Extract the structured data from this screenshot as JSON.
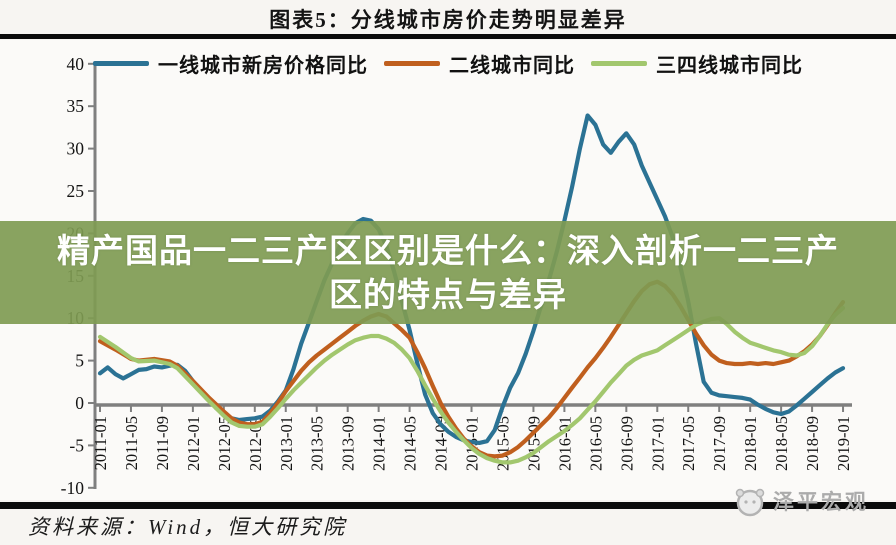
{
  "header": {
    "title": "图表5：分线城市房价走势明显差异"
  },
  "legend": {
    "items": [
      {
        "label": "一线城市新房价格同比",
        "color": "#2b7294"
      },
      {
        "label": "二线城市同比",
        "color": "#c05f1e"
      },
      {
        "label": "三四线城市同比",
        "color": "#a2c76e"
      }
    ]
  },
  "overlay": {
    "line1": "精产国品一二三产区区别是什么：深入剖析一二三产",
    "line2": "区的特点与差异",
    "background": "#7f9b52"
  },
  "watermark": {
    "text": "泽平宏观"
  },
  "footer": {
    "source": "资料来源：Wind，恒大研究院"
  },
  "chart_data": {
    "type": "line",
    "title": "图表5：分线城市房价走势明显差异",
    "xlabel": "",
    "ylabel": "",
    "ylim": [
      -10,
      40
    ],
    "y_ticks": [
      40,
      35,
      30,
      25,
      20,
      15,
      10,
      5,
      0,
      -5,
      -10
    ],
    "grid": false,
    "legend_position": "top",
    "x_start": "2011-01",
    "months_per_tick": 4,
    "x_tick_labels": [
      "2011-01",
      "2011-05",
      "2011-09",
      "2012-01",
      "2012-05",
      "2012-09",
      "2013-01",
      "2013-05",
      "2013-09",
      "2014-01",
      "2014-05",
      "2014-09",
      "2015-01",
      "2015-05",
      "2015-09",
      "2016-01",
      "2016-05",
      "2016-09",
      "2017-01",
      "2017-05",
      "2017-09",
      "2018-01",
      "2018-05",
      "2018-09",
      "2019-01"
    ],
    "series": [
      {
        "name": "一线城市新房价格同比",
        "color": "#2b7294",
        "points": [
          [
            0,
            3.5
          ],
          [
            1,
            4.2
          ],
          [
            2,
            3.4
          ],
          [
            3,
            2.9
          ],
          [
            4,
            3.4
          ],
          [
            5,
            3.9
          ],
          [
            6,
            4.0
          ],
          [
            7,
            4.3
          ],
          [
            8,
            4.2
          ],
          [
            9,
            4.4
          ],
          [
            10,
            4.5
          ],
          [
            11,
            3.8
          ],
          [
            12,
            2.6
          ],
          [
            13,
            1.6
          ],
          [
            14,
            0.6
          ],
          [
            15,
            -0.6
          ],
          [
            16,
            -1.4
          ],
          [
            17,
            -1.8
          ],
          [
            18,
            -2.0
          ],
          [
            19,
            -1.9
          ],
          [
            20,
            -1.8
          ],
          [
            21,
            -1.6
          ],
          [
            22,
            -0.9
          ],
          [
            23,
            0.2
          ],
          [
            24,
            1.5
          ],
          [
            25,
            4.0
          ],
          [
            26,
            7.0
          ],
          [
            27,
            9.5
          ],
          [
            28,
            12.0
          ],
          [
            29,
            14.5
          ],
          [
            30,
            16.5
          ],
          [
            31,
            18.5
          ],
          [
            32,
            20.0
          ],
          [
            33,
            21.2
          ],
          [
            34,
            21.7
          ],
          [
            35,
            21.5
          ],
          [
            36,
            20.5
          ],
          [
            37,
            18.5
          ],
          [
            38,
            15.5
          ],
          [
            39,
            12.0
          ],
          [
            40,
            8.6
          ],
          [
            41,
            4.7
          ],
          [
            42,
            1.0
          ],
          [
            43,
            -1.2
          ],
          [
            44,
            -2.5
          ],
          [
            45,
            -3.4
          ],
          [
            46,
            -4.0
          ],
          [
            47,
            -4.4
          ],
          [
            48,
            -4.6
          ],
          [
            49,
            -4.7
          ],
          [
            50,
            -4.5
          ],
          [
            51,
            -3.2
          ],
          [
            52,
            -0.5
          ],
          [
            53,
            1.8
          ],
          [
            54,
            3.5
          ],
          [
            55,
            5.8
          ],
          [
            56,
            8.5
          ],
          [
            57,
            11.5
          ],
          [
            58,
            14.5
          ],
          [
            59,
            17.8
          ],
          [
            60,
            21.5
          ],
          [
            61,
            25.5
          ],
          [
            62,
            30.0
          ],
          [
            63,
            33.9
          ],
          [
            64,
            32.8
          ],
          [
            65,
            30.5
          ],
          [
            66,
            29.5
          ],
          [
            67,
            30.8
          ],
          [
            68,
            31.8
          ],
          [
            69,
            30.5
          ],
          [
            70,
            28.0
          ],
          [
            71,
            26.0
          ],
          [
            72,
            24.0
          ],
          [
            73,
            22.0
          ],
          [
            74,
            19.5
          ],
          [
            75,
            16.0
          ],
          [
            76,
            12.0
          ],
          [
            77,
            7.0
          ],
          [
            78,
            2.5
          ],
          [
            79,
            1.2
          ],
          [
            80,
            0.9
          ],
          [
            81,
            0.8
          ],
          [
            82,
            0.7
          ],
          [
            83,
            0.6
          ],
          [
            84,
            0.4
          ],
          [
            85,
            -0.2
          ],
          [
            86,
            -0.7
          ],
          [
            87,
            -1.1
          ],
          [
            88,
            -1.3
          ],
          [
            89,
            -1.0
          ],
          [
            90,
            -0.3
          ],
          [
            91,
            0.5
          ],
          [
            92,
            1.3
          ],
          [
            93,
            2.1
          ],
          [
            94,
            2.9
          ],
          [
            95,
            3.6
          ],
          [
            96,
            4.1
          ]
        ]
      },
      {
        "name": "二线城市同比",
        "color": "#c05f1e",
        "points": [
          [
            0,
            7.3
          ],
          [
            2,
            6.3
          ],
          [
            4,
            5.2
          ],
          [
            5,
            5.0
          ],
          [
            7,
            5.2
          ],
          [
            9,
            4.9
          ],
          [
            10,
            4.4
          ],
          [
            12,
            2.6
          ],
          [
            14,
            0.7
          ],
          [
            16,
            -1.0
          ],
          [
            17,
            -1.8
          ],
          [
            18,
            -2.3
          ],
          [
            19,
            -2.5
          ],
          [
            20,
            -2.5
          ],
          [
            21,
            -2.2
          ],
          [
            22,
            -1.2
          ],
          [
            23,
            0.0
          ],
          [
            24,
            1.4
          ],
          [
            25,
            2.6
          ],
          [
            26,
            3.8
          ],
          [
            27,
            4.8
          ],
          [
            28,
            5.6
          ],
          [
            29,
            6.3
          ],
          [
            30,
            7.0
          ],
          [
            31,
            7.7
          ],
          [
            32,
            8.4
          ],
          [
            33,
            9.1
          ],
          [
            34,
            9.7
          ],
          [
            35,
            10.2
          ],
          [
            36,
            10.5
          ],
          [
            37,
            10.2
          ],
          [
            38,
            9.4
          ],
          [
            39,
            8.6
          ],
          [
            40,
            7.7
          ],
          [
            41,
            6.0
          ],
          [
            42,
            4.1
          ],
          [
            43,
            2.0
          ],
          [
            44,
            0.0
          ],
          [
            45,
            -1.6
          ],
          [
            46,
            -3.0
          ],
          [
            47,
            -4.2
          ],
          [
            48,
            -5.1
          ],
          [
            49,
            -5.8
          ],
          [
            50,
            -6.2
          ],
          [
            51,
            -6.3
          ],
          [
            52,
            -6.2
          ],
          [
            53,
            -5.8
          ],
          [
            54,
            -5.2
          ],
          [
            55,
            -4.4
          ],
          [
            56,
            -3.5
          ],
          [
            57,
            -2.6
          ],
          [
            58,
            -1.7
          ],
          [
            59,
            -0.6
          ],
          [
            60,
            0.6
          ],
          [
            61,
            1.8
          ],
          [
            62,
            3.0
          ],
          [
            63,
            4.2
          ],
          [
            64,
            5.3
          ],
          [
            65,
            6.5
          ],
          [
            66,
            7.8
          ],
          [
            67,
            9.2
          ],
          [
            68,
            10.6
          ],
          [
            69,
            12.0
          ],
          [
            70,
            13.2
          ],
          [
            71,
            14.0
          ],
          [
            72,
            14.3
          ],
          [
            73,
            13.8
          ],
          [
            74,
            12.8
          ],
          [
            75,
            11.4
          ],
          [
            76,
            9.8
          ],
          [
            77,
            8.2
          ],
          [
            78,
            6.8
          ],
          [
            79,
            5.7
          ],
          [
            80,
            5.0
          ],
          [
            81,
            4.7
          ],
          [
            82,
            4.6
          ],
          [
            83,
            4.6
          ],
          [
            84,
            4.7
          ],
          [
            85,
            4.6
          ],
          [
            86,
            4.7
          ],
          [
            87,
            4.6
          ],
          [
            88,
            4.8
          ],
          [
            89,
            5.0
          ],
          [
            90,
            5.5
          ],
          [
            91,
            6.1
          ],
          [
            92,
            6.9
          ],
          [
            93,
            7.9
          ],
          [
            94,
            9.2
          ],
          [
            95,
            10.6
          ],
          [
            96,
            11.9
          ]
        ]
      },
      {
        "name": "三四线城市同比",
        "color": "#a2c76e",
        "points": [
          [
            0,
            7.8
          ],
          [
            2,
            6.6
          ],
          [
            4,
            5.3
          ],
          [
            5,
            4.9
          ],
          [
            7,
            5.0
          ],
          [
            9,
            4.6
          ],
          [
            10,
            4.1
          ],
          [
            12,
            2.2
          ],
          [
            14,
            0.3
          ],
          [
            16,
            -1.5
          ],
          [
            17,
            -2.3
          ],
          [
            18,
            -2.7
          ],
          [
            19,
            -2.8
          ],
          [
            20,
            -2.8
          ],
          [
            21,
            -2.5
          ],
          [
            22,
            -1.6
          ],
          [
            23,
            -0.6
          ],
          [
            24,
            0.5
          ],
          [
            25,
            1.5
          ],
          [
            26,
            2.4
          ],
          [
            27,
            3.3
          ],
          [
            28,
            4.2
          ],
          [
            29,
            5.0
          ],
          [
            30,
            5.7
          ],
          [
            31,
            6.3
          ],
          [
            32,
            6.9
          ],
          [
            33,
            7.4
          ],
          [
            34,
            7.7
          ],
          [
            35,
            7.9
          ],
          [
            36,
            7.9
          ],
          [
            37,
            7.6
          ],
          [
            38,
            7.1
          ],
          [
            39,
            6.3
          ],
          [
            40,
            5.3
          ],
          [
            41,
            3.8
          ],
          [
            42,
            2.1
          ],
          [
            43,
            0.5
          ],
          [
            44,
            -1.0
          ],
          [
            45,
            -2.3
          ],
          [
            46,
            -3.4
          ],
          [
            47,
            -4.4
          ],
          [
            48,
            -5.3
          ],
          [
            49,
            -6.0
          ],
          [
            50,
            -6.5
          ],
          [
            51,
            -6.8
          ],
          [
            52,
            -7.0
          ],
          [
            53,
            -7.0
          ],
          [
            54,
            -6.8
          ],
          [
            55,
            -6.4
          ],
          [
            56,
            -5.9
          ],
          [
            57,
            -5.2
          ],
          [
            58,
            -4.5
          ],
          [
            59,
            -3.9
          ],
          [
            60,
            -3.3
          ],
          [
            61,
            -2.6
          ],
          [
            62,
            -1.8
          ],
          [
            63,
            -0.8
          ],
          [
            64,
            0.2
          ],
          [
            65,
            1.3
          ],
          [
            66,
            2.4
          ],
          [
            67,
            3.4
          ],
          [
            68,
            4.4
          ],
          [
            69,
            5.1
          ],
          [
            70,
            5.6
          ],
          [
            71,
            5.9
          ],
          [
            72,
            6.2
          ],
          [
            73,
            6.8
          ],
          [
            74,
            7.4
          ],
          [
            75,
            8.0
          ],
          [
            76,
            8.6
          ],
          [
            77,
            9.2
          ],
          [
            78,
            9.6
          ],
          [
            79,
            9.9
          ],
          [
            80,
            10.0
          ],
          [
            81,
            9.3
          ],
          [
            82,
            8.4
          ],
          [
            83,
            7.7
          ],
          [
            84,
            7.1
          ],
          [
            85,
            6.8
          ],
          [
            86,
            6.5
          ],
          [
            87,
            6.2
          ],
          [
            88,
            6.0
          ],
          [
            89,
            5.7
          ],
          [
            90,
            5.6
          ],
          [
            91,
            5.9
          ],
          [
            92,
            6.7
          ],
          [
            93,
            7.9
          ],
          [
            94,
            9.3
          ],
          [
            95,
            10.4
          ],
          [
            96,
            11.2
          ]
        ]
      }
    ]
  }
}
